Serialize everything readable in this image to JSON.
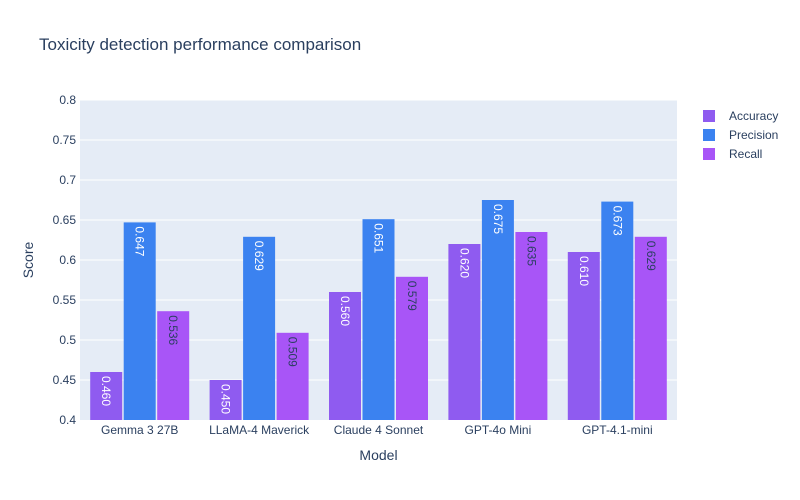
{
  "chart_data": {
    "type": "bar",
    "title": "Toxicity detection performance comparison",
    "xlabel": "Model",
    "ylabel": "Score",
    "ylim": [
      0.4,
      0.8
    ],
    "yticks": [
      0.4,
      0.45,
      0.5,
      0.55,
      0.6,
      0.65,
      0.7,
      0.75,
      0.8
    ],
    "ytick_labels": [
      "0.4",
      "0.45",
      "0.5",
      "0.55",
      "0.6",
      "0.65",
      "0.7",
      "0.75",
      "0.8"
    ],
    "categories": [
      "Gemma 3 27B",
      "LLaMA-4 Maverick",
      "Claude 4 Sonnet",
      "GPT-4o Mini",
      "GPT-4.1-mini"
    ],
    "legend_position": "top-right",
    "series": [
      {
        "name": "Accuracy",
        "color": "#8f5bf0",
        "values": [
          0.46,
          0.45,
          0.56,
          0.62,
          0.61
        ],
        "labels": [
          "0.460",
          "0.450",
          "0.560",
          "0.620",
          "0.610"
        ]
      },
      {
        "name": "Precision",
        "color": "#3b82f0",
        "values": [
          0.647,
          0.629,
          0.651,
          0.675,
          0.673
        ],
        "labels": [
          "0.647",
          "0.629",
          "0.651",
          "0.675",
          "0.673"
        ]
      },
      {
        "name": "Recall",
        "color": "#a855f7",
        "values": [
          0.536,
          0.509,
          0.579,
          0.635,
          0.629
        ],
        "labels": [
          "0.536",
          "0.509",
          "0.579",
          "0.635",
          "0.629"
        ]
      }
    ]
  }
}
